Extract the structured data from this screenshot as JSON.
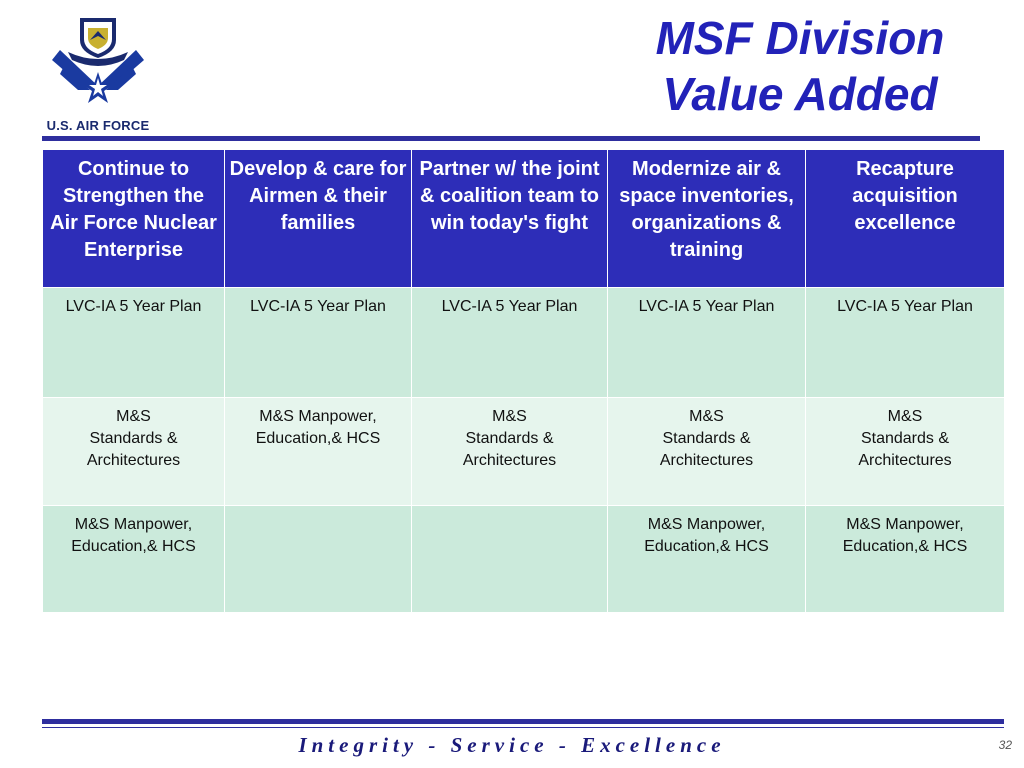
{
  "logo": {
    "text": "U.S. AIR FORCE"
  },
  "title": {
    "line1": "MSF Division",
    "line2": "Value Added"
  },
  "table": {
    "headers": [
      "Continue to Strengthen the Air Force Nuclear Enterprise",
      "Develop & care for Airmen & their families",
      "Partner w/ the joint & coalition team to win today's fight",
      "Modernize air & space inventories, organizations & training",
      "Recapture acquisition excellence"
    ],
    "rows": [
      [
        [
          "LVC-IA 5 Year Plan"
        ],
        [
          "LVC-IA 5 Year Plan"
        ],
        [
          "LVC-IA 5 Year Plan"
        ],
        [
          "LVC-IA 5 Year Plan"
        ],
        [
          "LVC-IA 5 Year Plan"
        ]
      ],
      [
        [
          "M&S",
          "Standards &",
          "Architectures"
        ],
        [
          "M&S Manpower,",
          "Education,& HCS"
        ],
        [
          "M&S",
          "Standards &",
          "Architectures"
        ],
        [
          "M&S",
          "Standards &",
          "Architectures"
        ],
        [
          "M&S",
          "Standards &",
          "Architectures"
        ]
      ],
      [
        [
          "M&S Manpower,",
          "Education,& HCS"
        ],
        [],
        [],
        [
          "M&S Manpower,",
          "Education,& HCS"
        ],
        [
          "M&S Manpower,",
          "Education,& HCS"
        ]
      ]
    ]
  },
  "footer": {
    "motto": "Integrity - Service - Excellence",
    "page_number": "32"
  },
  "colors": {
    "header_bg": "#2d2db8",
    "row_a": "#cbeadb",
    "row_b": "#e6f5ed",
    "title": "#2222b8",
    "rule": "#2e2e9e"
  }
}
